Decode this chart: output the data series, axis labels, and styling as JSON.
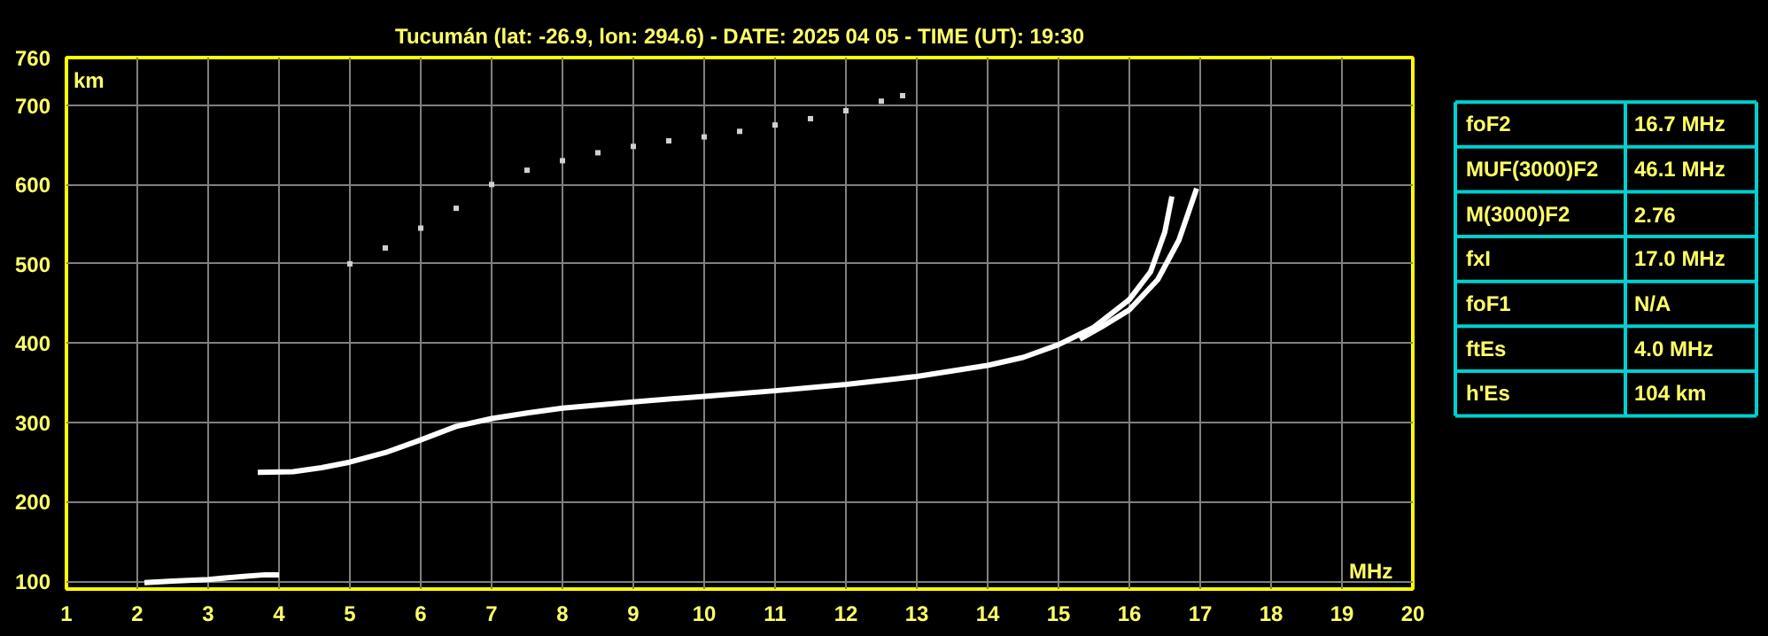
{
  "chart_data": [
    {
      "type": "line",
      "title": "Tucumán (lat: -26.9, lon: 294.6) - DATE: 2025 04 05 - TIME (UT): 19:30",
      "xlabel": "MHz",
      "ylabel": "km",
      "xlim": [
        1,
        20
      ],
      "ylim": [
        90,
        760
      ],
      "xticks": [
        1,
        2,
        3,
        4,
        5,
        6,
        7,
        8,
        9,
        10,
        11,
        12,
        13,
        14,
        15,
        16,
        17,
        18,
        19,
        20
      ],
      "yticks": [
        100,
        200,
        300,
        400,
        500,
        600,
        700,
        760
      ],
      "grid": true,
      "series": [
        {
          "type": "line",
          "color": "#ffffff",
          "x": [
            3.7,
            4.2,
            4.6,
            5,
            5.5,
            6,
            6.5,
            7,
            7.5,
            8,
            9,
            10,
            11,
            12,
            13,
            14,
            14.5,
            15,
            15.5,
            16,
            16.3,
            16.5,
            16.6
          ],
          "values": [
            237,
            238,
            243,
            250,
            262,
            278,
            295,
            305,
            312,
            318,
            326,
            333,
            340,
            348,
            358,
            372,
            382,
            398,
            420,
            455,
            490,
            540,
            585
          ]
        },
        {
          "type": "line",
          "color": "#ffffff",
          "x": [
            15.3,
            15.6,
            16,
            16.4,
            16.7,
            16.95
          ],
          "values": [
            405,
            420,
            442,
            480,
            530,
            595
          ]
        },
        {
          "type": "scatter",
          "marker": "square",
          "color": "#d0d0d0",
          "x": [
            5,
            5.5,
            6,
            6.5,
            7,
            7.5,
            8,
            8.5,
            9,
            9.5,
            10,
            10.5,
            11,
            11.5,
            12,
            12.5,
            12.8
          ],
          "values": [
            500,
            520,
            545,
            570,
            600,
            618,
            630,
            640,
            648,
            655,
            660,
            667,
            675,
            683,
            693,
            705,
            712
          ]
        },
        {
          "type": "line",
          "color": "#ffffff",
          "x": [
            2.1,
            2.5,
            3,
            3.5,
            3.8,
            4.0
          ],
          "values": [
            98,
            100,
            102,
            106,
            108,
            108
          ]
        }
      ]
    },
    {
      "type": "other",
      "annotations": [
        "foF2",
        "16.7 MHz",
        "MUF(3000)F2",
        "46.1 MHz",
        "M(3000)F2",
        "2.76",
        "fxI",
        "17.0 MHz",
        "foF1",
        "N/A",
        "ftEs",
        "4.0 MHz",
        "h'Es",
        "104 km"
      ]
    }
  ]
}
